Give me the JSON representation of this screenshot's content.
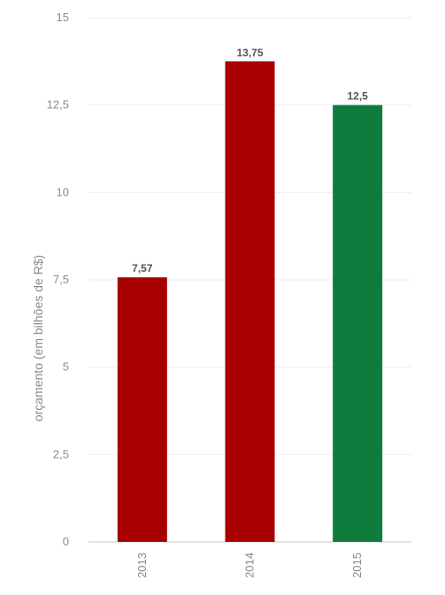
{
  "chart_data": {
    "type": "bar",
    "categories": [
      "2013",
      "2014",
      "2015"
    ],
    "values": [
      7.57,
      13.75,
      12.5
    ],
    "data_labels": [
      "7,57",
      "13,75",
      "12,5"
    ],
    "ylabel": "orçamento (em bilhões de R$)",
    "xlabel": "",
    "ylim": [
      0,
      15
    ],
    "y_ticks": [
      0,
      2.5,
      5,
      7.5,
      10,
      12.5,
      15
    ],
    "y_tick_labels": [
      "0",
      "2,5",
      "5",
      "7,5",
      "10",
      "12,5",
      "15"
    ],
    "bar_colors": [
      "#a80000",
      "#a80000",
      "#0d7c3c"
    ],
    "grid": true,
    "legend": "none"
  }
}
